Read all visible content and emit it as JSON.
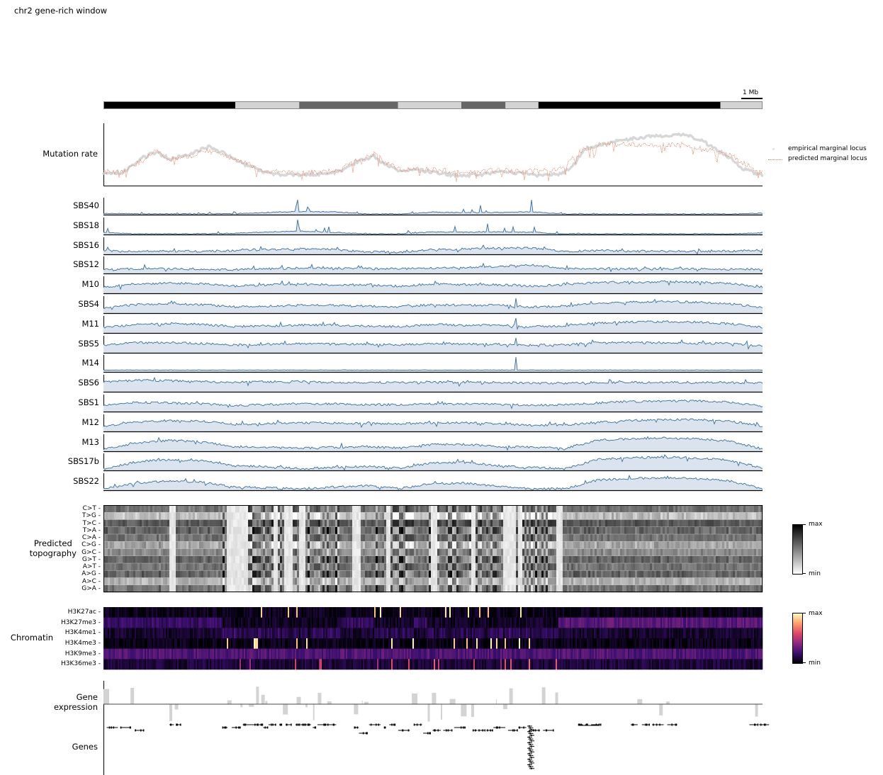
{
  "title": "chr2 gene-rich window",
  "scalebar": {
    "label": "1 Mb"
  },
  "ideogram": {
    "bands": [
      {
        "start": 0.0,
        "end": 0.2,
        "color": "#000000"
      },
      {
        "start": 0.2,
        "end": 0.297,
        "color": "#d3d3d3"
      },
      {
        "start": 0.297,
        "end": 0.447,
        "color": "#666666"
      },
      {
        "start": 0.447,
        "end": 0.543,
        "color": "#d3d3d3"
      },
      {
        "start": 0.543,
        "end": 0.61,
        "color": "#666666"
      },
      {
        "start": 0.61,
        "end": 0.66,
        "color": "#d3d3d3"
      },
      {
        "start": 0.66,
        "end": 0.936,
        "color": "#000000"
      },
      {
        "start": 0.936,
        "end": 1.0,
        "color": "#d3d3d3"
      }
    ]
  },
  "mutation_rate": {
    "label": "Mutation rate",
    "legend": [
      {
        "label": "empirical marginal locus",
        "color": "#c8c8c8",
        "style": "dots"
      },
      {
        "label": "predicted marginal locus",
        "color": "#e07a5f",
        "style": "dotted-line"
      }
    ]
  },
  "signatures": {
    "color": "#3a6f99",
    "fill": "#dbe4ee",
    "labels": [
      "SBS40",
      "SBS18",
      "SBS16",
      "SBS12",
      "M10",
      "SBS4",
      "M11",
      "SBS5",
      "M14",
      "SBS6",
      "SBS1",
      "M12",
      "M13",
      "SBS17b",
      "SBS22"
    ]
  },
  "topography": {
    "label_line1": "Predicted",
    "label_line2": "topography",
    "rows": [
      "C>T",
      "T>G",
      "T>C",
      "T>A",
      "C>A",
      "C>G",
      "G>C",
      "G>T",
      "A>T",
      "A>G",
      "A>C",
      "G>A"
    ],
    "colorbar": {
      "max_label": "max",
      "min_label": "min",
      "cmap": "Greys"
    }
  },
  "chromatin": {
    "label": "Chromatin",
    "rows": [
      "H3K27ac",
      "H3K27me3",
      "H3K4me1",
      "H3K4me3",
      "H3K9me3",
      "H3K36me3"
    ],
    "colorbar": {
      "max_label": "max",
      "min_label": "min",
      "cmap": "magma"
    }
  },
  "gene_expression": {
    "label_line1": "Gene",
    "label_line2": "expression",
    "bar_color": "#d3d3d3"
  },
  "genes": {
    "label": "Genes"
  },
  "chart_data": {
    "type": "line",
    "title": "chr2 gene-rich window",
    "x_range": [
      0,
      1
    ],
    "x_unit": "relative position along window (scale bar = 1 Mb)",
    "grid": false,
    "legend_position": "right of Mutation rate panel",
    "mutation_rate": {
      "x": [
        0.0,
        0.03,
        0.06,
        0.08,
        0.1,
        0.13,
        0.16,
        0.18,
        0.21,
        0.24,
        0.27,
        0.3,
        0.33,
        0.36,
        0.38,
        0.41,
        0.43,
        0.45,
        0.48,
        0.51,
        0.54,
        0.57,
        0.6,
        0.63,
        0.66,
        0.69,
        0.71,
        0.73,
        0.76,
        0.79,
        0.82,
        0.85,
        0.88,
        0.91,
        0.93,
        0.95,
        0.97,
        1.0
      ],
      "empirical": [
        0.15,
        0.18,
        0.45,
        0.55,
        0.42,
        0.5,
        0.65,
        0.55,
        0.35,
        0.2,
        0.14,
        0.12,
        0.15,
        0.2,
        0.35,
        0.48,
        0.3,
        0.2,
        0.22,
        0.16,
        0.12,
        0.14,
        0.18,
        0.16,
        0.12,
        0.14,
        0.25,
        0.6,
        0.7,
        0.78,
        0.82,
        0.85,
        0.88,
        0.75,
        0.6,
        0.45,
        0.25,
        0.12
      ],
      "predicted": [
        0.18,
        0.2,
        0.4,
        0.58,
        0.42,
        0.48,
        0.58,
        0.5,
        0.38,
        0.22,
        0.18,
        0.17,
        0.18,
        0.22,
        0.38,
        0.52,
        0.35,
        0.22,
        0.24,
        0.22,
        0.18,
        0.2,
        0.22,
        0.2,
        0.2,
        0.22,
        0.4,
        0.62,
        0.68,
        0.7,
        0.7,
        0.68,
        0.68,
        0.6,
        0.55,
        0.5,
        0.35,
        0.18
      ]
    },
    "signature_profiles": {
      "x": [
        0.0,
        0.05,
        0.1,
        0.15,
        0.2,
        0.25,
        0.3,
        0.35,
        0.4,
        0.45,
        0.5,
        0.55,
        0.6,
        0.65,
        0.7,
        0.75,
        0.8,
        0.85,
        0.9,
        0.95,
        1.0
      ],
      "SBS40": [
        0.15,
        0.1,
        0.08,
        0.08,
        0.1,
        0.35,
        0.5,
        0.45,
        0.05,
        0.05,
        0.4,
        0.3,
        0.35,
        0.45,
        0.05,
        0.05,
        0.05,
        0.05,
        0.05,
        0.05,
        0.2
      ],
      "SBS18": [
        0.3,
        0.05,
        0.05,
        0.05,
        0.15,
        0.4,
        0.55,
        0.3,
        0.05,
        0.05,
        0.4,
        0.35,
        0.4,
        0.35,
        0.05,
        0.05,
        0.05,
        0.05,
        0.05,
        0.05,
        0.25
      ],
      "SBS16": [
        0.25,
        0.2,
        0.2,
        0.2,
        0.25,
        0.3,
        0.35,
        0.3,
        0.15,
        0.15,
        0.3,
        0.35,
        0.4,
        0.4,
        0.2,
        0.25,
        0.2,
        0.2,
        0.2,
        0.2,
        0.3
      ],
      "SBS12": [
        0.25,
        0.3,
        0.3,
        0.25,
        0.25,
        0.3,
        0.35,
        0.35,
        0.3,
        0.3,
        0.35,
        0.4,
        0.45,
        0.55,
        0.3,
        0.3,
        0.3,
        0.3,
        0.3,
        0.25,
        0.3
      ],
      "M10": [
        0.4,
        0.6,
        0.65,
        0.6,
        0.45,
        0.55,
        0.6,
        0.55,
        0.55,
        0.45,
        0.6,
        0.55,
        0.55,
        0.45,
        0.55,
        0.7,
        0.7,
        0.75,
        0.7,
        0.65,
        0.4
      ],
      "SBS4": [
        0.35,
        0.55,
        0.6,
        0.55,
        0.4,
        0.45,
        0.5,
        0.5,
        0.45,
        0.4,
        0.55,
        0.5,
        0.5,
        0.4,
        0.45,
        0.65,
        0.7,
        0.75,
        0.7,
        0.6,
        0.35
      ],
      "M11": [
        0.35,
        0.55,
        0.6,
        0.55,
        0.4,
        0.45,
        0.5,
        0.5,
        0.45,
        0.4,
        0.55,
        0.5,
        0.5,
        0.4,
        0.45,
        0.65,
        0.7,
        0.72,
        0.7,
        0.6,
        0.35
      ],
      "SBS5": [
        0.5,
        0.65,
        0.65,
        0.6,
        0.5,
        0.55,
        0.6,
        0.55,
        0.55,
        0.5,
        0.6,
        0.55,
        0.55,
        0.5,
        0.5,
        0.65,
        0.65,
        0.65,
        0.6,
        0.6,
        0.45
      ],
      "M14": [
        0.1,
        0.12,
        0.12,
        0.12,
        0.1,
        0.12,
        0.12,
        0.12,
        0.12,
        0.12,
        0.12,
        0.12,
        0.12,
        0.15,
        0.12,
        0.12,
        0.12,
        0.12,
        0.12,
        0.12,
        0.1
      ],
      "SBS6": [
        0.6,
        0.75,
        0.7,
        0.65,
        0.6,
        0.65,
        0.65,
        0.6,
        0.6,
        0.6,
        0.6,
        0.6,
        0.6,
        0.55,
        0.55,
        0.6,
        0.6,
        0.6,
        0.6,
        0.6,
        0.55
      ],
      "SBS1": [
        0.4,
        0.6,
        0.55,
        0.5,
        0.4,
        0.45,
        0.5,
        0.5,
        0.45,
        0.45,
        0.5,
        0.5,
        0.45,
        0.4,
        0.45,
        0.55,
        0.65,
        0.65,
        0.7,
        0.6,
        0.35
      ],
      "M12": [
        0.35,
        0.6,
        0.7,
        0.65,
        0.45,
        0.5,
        0.55,
        0.55,
        0.5,
        0.5,
        0.55,
        0.55,
        0.5,
        0.4,
        0.4,
        0.6,
        0.7,
        0.75,
        0.75,
        0.65,
        0.35
      ],
      "M13": [
        0.15,
        0.55,
        0.7,
        0.6,
        0.3,
        0.25,
        0.2,
        0.25,
        0.3,
        0.2,
        0.45,
        0.45,
        0.3,
        0.25,
        0.2,
        0.7,
        0.8,
        0.85,
        0.8,
        0.65,
        0.15
      ],
      "SBS17b": [
        0.1,
        0.55,
        0.7,
        0.6,
        0.3,
        0.25,
        0.1,
        0.2,
        0.25,
        0.15,
        0.5,
        0.5,
        0.3,
        0.2,
        0.1,
        0.7,
        0.8,
        0.85,
        0.8,
        0.65,
        0.15
      ],
      "SBS22": [
        0.1,
        0.45,
        0.6,
        0.5,
        0.2,
        0.15,
        0.1,
        0.2,
        0.3,
        0.1,
        0.45,
        0.45,
        0.25,
        0.1,
        0.1,
        0.65,
        0.75,
        0.8,
        0.75,
        0.6,
        0.1
      ]
    }
  }
}
